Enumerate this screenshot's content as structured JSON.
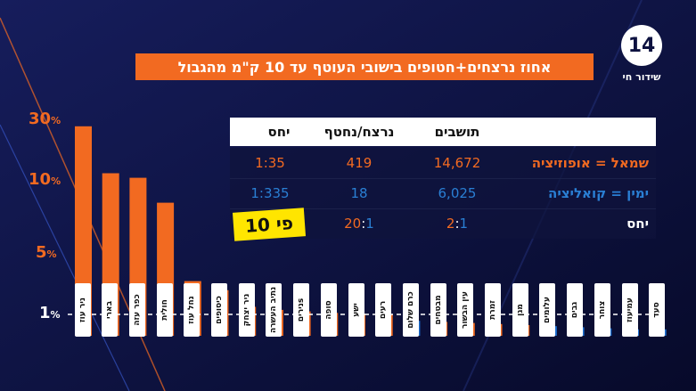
{
  "title": "אחוז נרצחים+חטופים בישובי העוטף עד 10 ק\"מ מהגבול",
  "logo": {
    "number": "14",
    "subtitle": "שידור חי"
  },
  "yticks": [
    {
      "value": 30,
      "label": "30",
      "unit": "%"
    },
    {
      "value": 10,
      "label": "10",
      "unit": "%"
    },
    {
      "value": 5,
      "label": "5",
      "unit": "%"
    },
    {
      "value": 1,
      "label": "1",
      "unit": "%"
    }
  ],
  "table": {
    "headers": {
      "residents": "תושבים",
      "victims": "נרצח/נחטף",
      "ratio": "יחס"
    },
    "rows": [
      {
        "label": "שמאל = אופוזיציה",
        "residents": "14,672",
        "victims": "419",
        "ratio": "1:35",
        "color": "#f26a21"
      },
      {
        "label": "ימין = קואליציה",
        "residents": "6,025",
        "victims": "18",
        "ratio": "1:335",
        "color": "#2a7fd4"
      },
      {
        "label": "יחס",
        "residents_a": "2",
        "residents_b": "1",
        "victims_a": "20",
        "victims_b": "1"
      }
    ],
    "badge": "פי 10"
  },
  "colors": {
    "left": "#f26a21",
    "right": "#1d6fd1",
    "background": "#0d1240"
  },
  "chart_data": {
    "type": "bar",
    "yscale": "nonlinear",
    "ylim": [
      0,
      30
    ],
    "categories": [
      "ניר עוז",
      "בארי",
      "כפר עזה",
      "חולית",
      "נחל עוז",
      "כיסופים",
      "ניר יצחק",
      "נתיב העשרה",
      "ניריםs",
      "סופה",
      "ישע",
      "רעים",
      "כרם שלום",
      "מבטחים",
      "עין הבשור",
      "זמרת",
      "מגן",
      "עלומים",
      "גבים",
      "צוחר",
      "עמיעוז",
      "סעד"
    ],
    "values": [
      28,
      12.5,
      11,
      8.5,
      3.2,
      2.6,
      1.5,
      1.3,
      1.2,
      1.1,
      1.05,
      1.0,
      0.7,
      0.65,
      0.6,
      0.55,
      0.5,
      0.45,
      0.4,
      0.35,
      0.3,
      0.3
    ],
    "groups": [
      "left",
      "left",
      "left",
      "left",
      "left",
      "left",
      "left",
      "left",
      "left",
      "left",
      "left",
      "left",
      "right",
      "left",
      "left",
      "left",
      "left",
      "right",
      "right",
      "right",
      "right",
      "right"
    ]
  }
}
